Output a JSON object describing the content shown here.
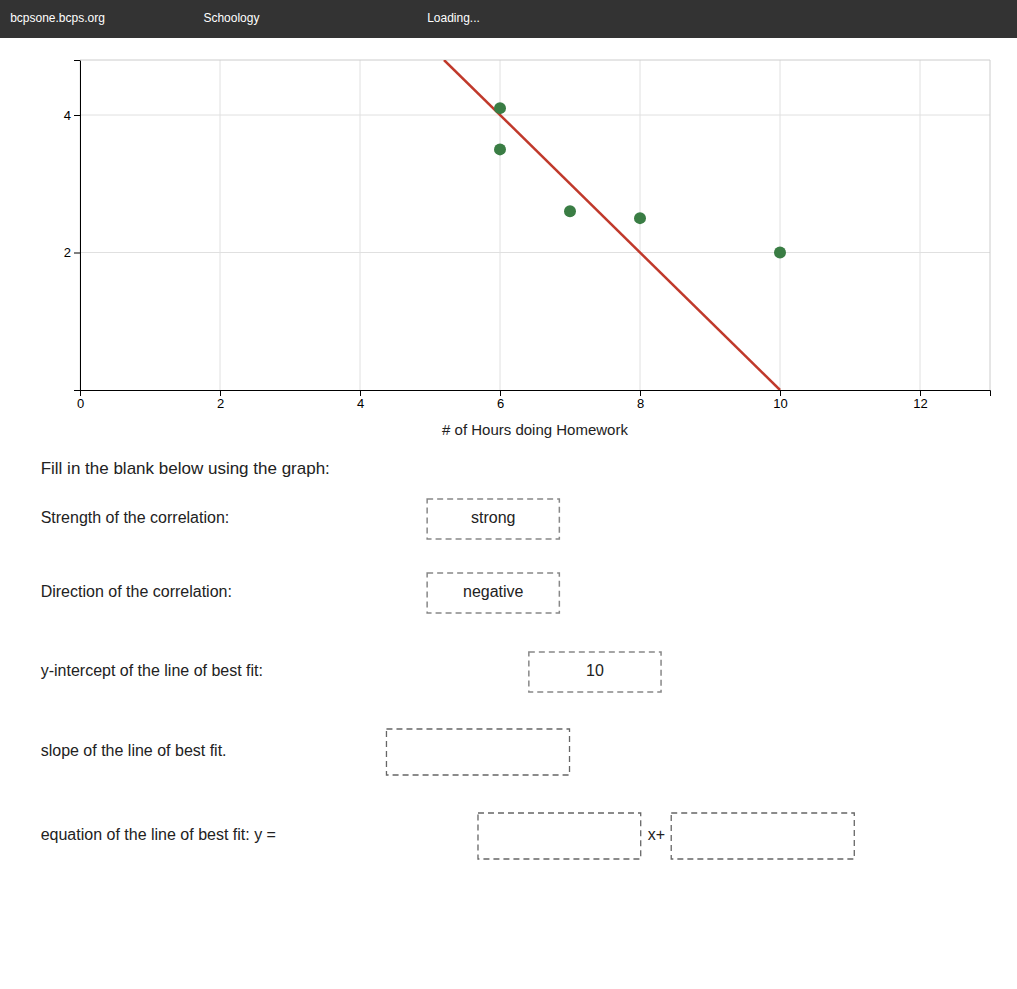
{
  "chart_data": {
    "type": "scatter",
    "xlabel": "# of Hours doing Homework",
    "series": [
      {
        "type": "scatter",
        "color": "#3a7d44",
        "x": [
          6,
          6,
          7,
          8,
          10
        ],
        "values": [
          4.1,
          3.5,
          2.6,
          2.5,
          2.0
        ]
      },
      {
        "type": "line",
        "color": "#c0392b",
        "x": [
          5.2,
          10
        ],
        "values": [
          4.8,
          0
        ]
      }
    ],
    "xlim": [
      0,
      13
    ],
    "ylim": [
      0,
      4.8
    ],
    "xticks": [
      0,
      2,
      4,
      6,
      8,
      10,
      12
    ],
    "yticks": [
      2,
      4
    ],
    "grid": true,
    "annotations": [
      "bcpsone.bcps.org",
      "Schoology",
      "Loading...",
      "Fill in the blank below using the graph:",
      "Strength of the correlation:",
      "Direction of the correlation:",
      "y-intercept of the line of best fit:",
      "slope of the line of best fit.",
      "equation of the line of best fit: y =",
      "strong",
      "negative",
      "10",
      "x+"
    ]
  }
}
